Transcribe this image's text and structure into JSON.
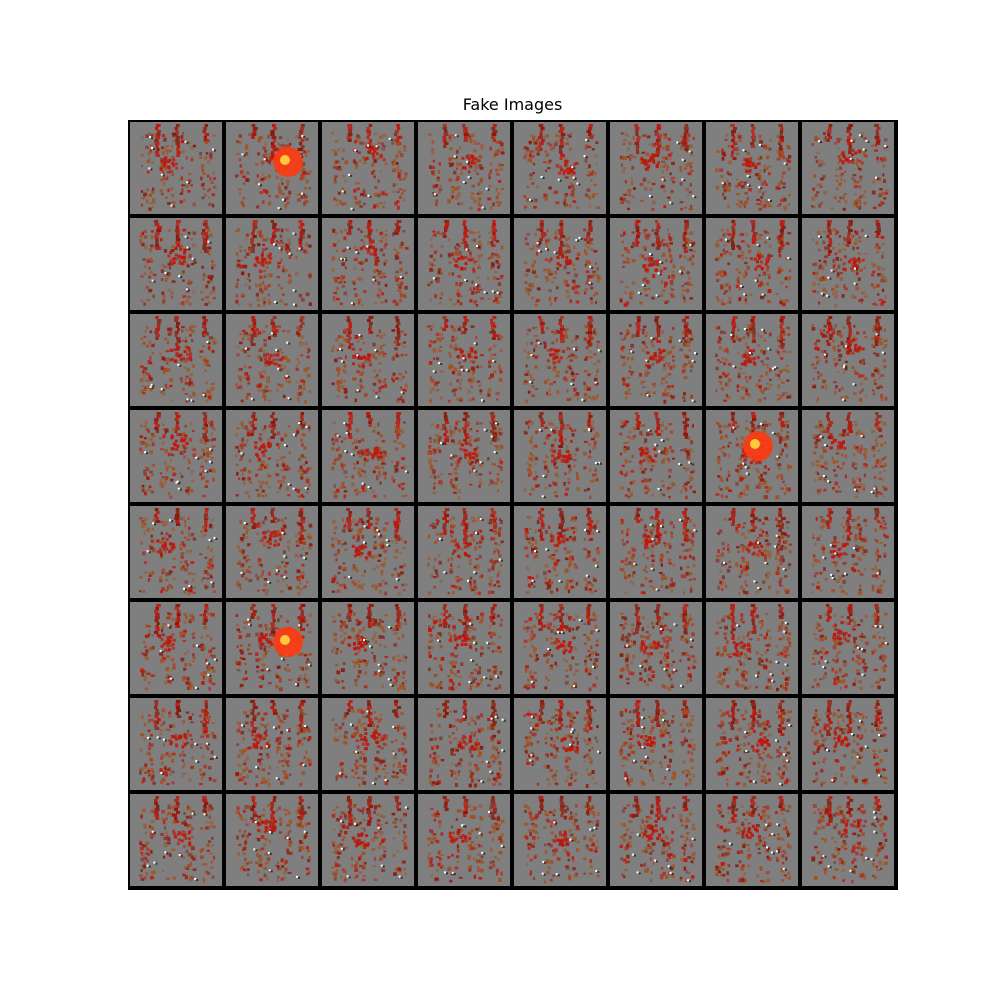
{
  "figure": {
    "title": "Fake Images"
  },
  "grid": {
    "rows": 8,
    "cols": 8,
    "tile_background": "#7f7f7f",
    "border_color": "#000000",
    "palette": {
      "red": "#c0150a",
      "dark_red": "#8a1a0c",
      "brown": "#a2501e",
      "orange_blob": "#ff3a10",
      "blob_core": "#ffe040",
      "white_spot": "#ffffff",
      "shadow_spot": "#3a3026"
    }
  }
}
